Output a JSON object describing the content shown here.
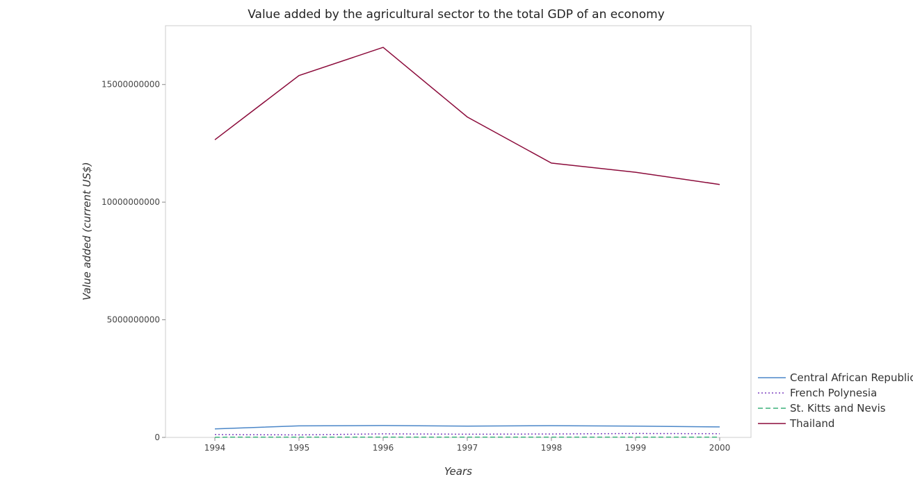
{
  "chart_data": {
    "type": "line",
    "title": "Value added by the agricultural sector to the total GDP of an economy",
    "xlabel": "Years",
    "ylabel": "Value added (current US$)",
    "x": [
      "1994",
      "1995",
      "1996",
      "1997",
      "1998",
      "1999",
      "2000"
    ],
    "ylim": [
      0,
      17500000000
    ],
    "yticks": [
      0,
      5000000000,
      10000000000,
      15000000000
    ],
    "ytick_labels": [
      "0",
      "5000000000",
      "10000000000",
      "15000000000"
    ],
    "grid": false,
    "legend_position": "bottom-right",
    "series": [
      {
        "name": "Central African Republic",
        "color": "#4a86c8",
        "dash": "",
        "values": [
          360000000,
          490000000,
          505000000,
          480000000,
          500000000,
          480000000,
          445000000
        ]
      },
      {
        "name": "French Polynesia",
        "color": "#7b3fbf",
        "dash": "2,3",
        "values": [
          120000000,
          105000000,
          150000000,
          135000000,
          145000000,
          165000000,
          155000000
        ]
      },
      {
        "name": "St. Kitts and Nevis",
        "color": "#3ab07a",
        "dash": "7,4",
        "values": [
          10000000,
          11000000,
          11500000,
          12000000,
          11000000,
          11000000,
          10500000
        ]
      },
      {
        "name": "Thailand",
        "color": "#8b0a3a",
        "dash": "",
        "values": [
          12650000000,
          15380000000,
          16580000000,
          13620000000,
          11660000000,
          11270000000,
          10750000000
        ]
      }
    ]
  }
}
